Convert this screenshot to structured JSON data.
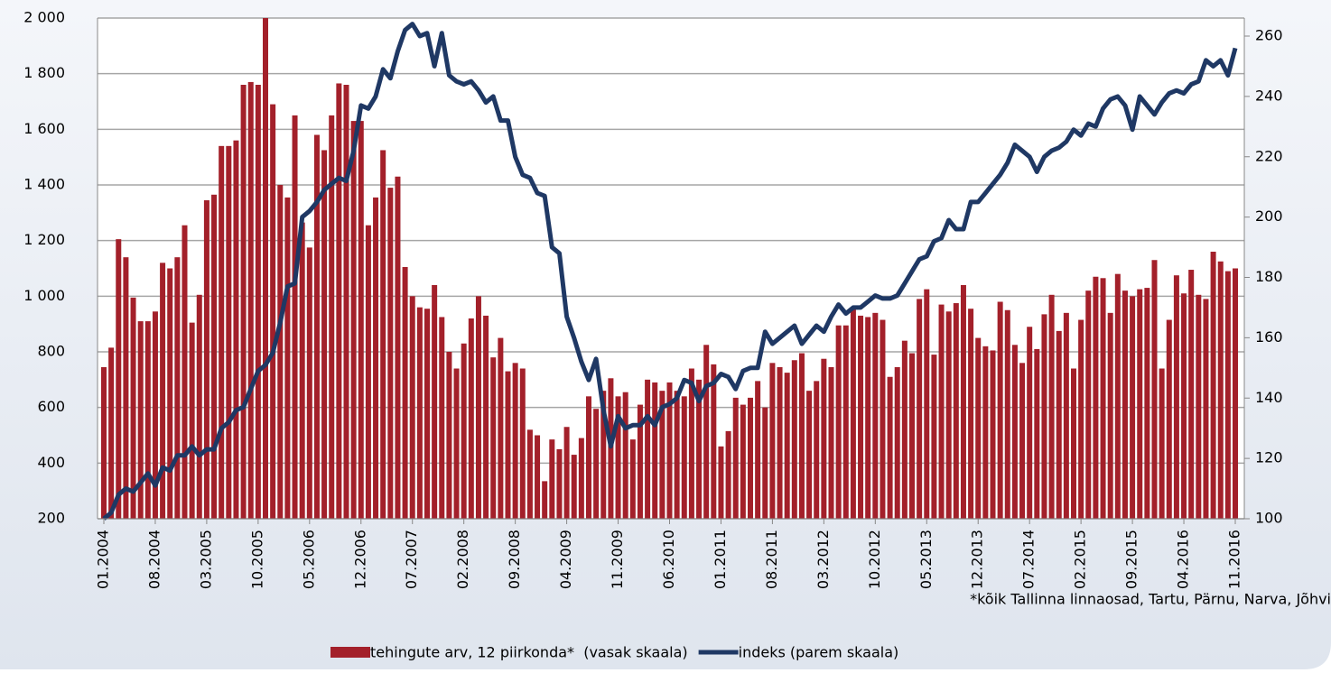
{
  "chart_data": {
    "type": "bar-line",
    "categories": [
      "01.2004",
      null,
      null,
      null,
      null,
      null,
      null,
      "08.2004",
      null,
      null,
      null,
      null,
      null,
      null,
      "03.2005",
      null,
      null,
      null,
      null,
      null,
      null,
      "10.2005",
      null,
      null,
      null,
      null,
      null,
      null,
      "05.2006",
      null,
      null,
      null,
      null,
      null,
      null,
      "12.2006",
      null,
      null,
      null,
      null,
      null,
      null,
      "07.2007",
      null,
      null,
      null,
      null,
      null,
      null,
      "02.2008",
      null,
      null,
      null,
      null,
      null,
      null,
      "09.2008",
      null,
      null,
      null,
      null,
      null,
      null,
      "04.2009",
      null,
      null,
      null,
      null,
      null,
      null,
      "11.2009",
      null,
      null,
      null,
      null,
      null,
      null,
      "06.2010",
      null,
      null,
      null,
      null,
      null,
      null,
      "01.2011",
      null,
      null,
      null,
      null,
      null,
      null,
      "08.2011",
      null,
      null,
      null,
      null,
      null,
      null,
      "03.2012",
      null,
      null,
      null,
      null,
      null,
      null,
      "10.2012",
      null,
      null,
      null,
      null,
      null,
      null,
      "05.2013",
      null,
      null,
      null,
      null,
      null,
      null,
      "12.2013",
      null,
      null,
      null,
      null,
      null,
      null,
      "07.2014",
      null,
      null,
      null,
      null,
      null,
      null,
      "02.2015",
      null,
      null,
      null,
      null,
      null,
      null,
      "09.2015",
      null,
      null,
      null,
      null,
      null,
      null,
      "04.2016",
      null,
      null,
      null,
      null,
      null,
      null,
      "11.2016"
    ],
    "series": [
      {
        "name": "tehingute arv, 12 piirkonda*  (vasak skaala)",
        "color": "#a3202a",
        "type": "bar",
        "axis": "y",
        "values": [
          745,
          815,
          1205,
          1140,
          995,
          910,
          910,
          945,
          1120,
          1100,
          1140,
          1255,
          905,
          1005,
          1345,
          1365,
          1540,
          1540,
          1560,
          1760,
          1770,
          1760,
          2000,
          1690,
          1400,
          1355,
          1650,
          1265,
          1175,
          1580,
          1525,
          1650,
          1765,
          1760,
          1630,
          1630,
          1255,
          1355,
          1525,
          1390,
          1430,
          1105,
          1000,
          960,
          955,
          1040,
          925,
          800,
          740,
          830,
          920,
          1000,
          930,
          780,
          850,
          730,
          760,
          740,
          520,
          500,
          335,
          485,
          450,
          530,
          430,
          490,
          640,
          595,
          660,
          705,
          640,
          655,
          485,
          610,
          700,
          690,
          660,
          690,
          660,
          640,
          740,
          700,
          825,
          755,
          460,
          515,
          635,
          610,
          635,
          695,
          600,
          760,
          745,
          725,
          770,
          795,
          660,
          695,
          775,
          745,
          895,
          895,
          960,
          930,
          925,
          940,
          915,
          710,
          745,
          840,
          795,
          990,
          1025,
          790,
          970,
          945,
          975,
          1040,
          955,
          850,
          820,
          805,
          980,
          950,
          825,
          760,
          890,
          810,
          935,
          1005,
          875,
          940,
          740,
          915,
          1020,
          1070,
          1065,
          940,
          1080,
          1020,
          1000,
          1025,
          1030,
          1130,
          740,
          915,
          1075,
          1010,
          1095,
          1005,
          990,
          1160,
          1125,
          1090,
          1100
        ]
      },
      {
        "name": "indeks (parem skaala)",
        "color": "#1f3864",
        "type": "line",
        "axis": "y2",
        "values": [
          100,
          102,
          108,
          110,
          109,
          112,
          115,
          111,
          117,
          116,
          121,
          121,
          124,
          121,
          123,
          123,
          130,
          132,
          136,
          137,
          143,
          149,
          151,
          155,
          165,
          177,
          178,
          200,
          202,
          205,
          209,
          211,
          213,
          212,
          222,
          237,
          236,
          240,
          249,
          246,
          255,
          262,
          264,
          260,
          261,
          250,
          261,
          247,
          245,
          244,
          245,
          242,
          238,
          240,
          232,
          232,
          220,
          214,
          213,
          208,
          207,
          190,
          188,
          167,
          160,
          152,
          146,
          153,
          136,
          124,
          134,
          130,
          131,
          131,
          134,
          131,
          137,
          138,
          140,
          146,
          145,
          139,
          144,
          145,
          148,
          147,
          143,
          149,
          150,
          150,
          162,
          158,
          160,
          162,
          164,
          158,
          161,
          164,
          162,
          167,
          171,
          168,
          170,
          170,
          172,
          174,
          173,
          173,
          174,
          178,
          182,
          186,
          187,
          192,
          193,
          199,
          196,
          196,
          205,
          205,
          208,
          211,
          214,
          218,
          224,
          222,
          220,
          215,
          220,
          222,
          223,
          225,
          229,
          227,
          231,
          230,
          236,
          239,
          240,
          237,
          229,
          240,
          237,
          234,
          238,
          241,
          242,
          241,
          244,
          245,
          252,
          250,
          252,
          247,
          256
        ]
      }
    ],
    "ylim": [
      200,
      2000
    ],
    "yticks": [
      200,
      400,
      600,
      800,
      {
        "value": 1000,
        "label": "1 000"
      },
      {
        "value": 1200,
        "label": "1 200"
      },
      {
        "value": 1400,
        "label": "1 400"
      },
      {
        "value": 1600,
        "label": "1 600"
      },
      {
        "value": 1800,
        "label": "1 800"
      },
      {
        "value": 2000,
        "label": "2 000"
      }
    ],
    "y2lim": [
      100,
      260
    ],
    "y2ticks": [
      100,
      120,
      140,
      160,
      180,
      200,
      220,
      240,
      260
    ],
    "grid": true,
    "note": "*kõik Tallinna linnaosad, Tartu, Pärnu, Narva, Jõhvi"
  }
}
